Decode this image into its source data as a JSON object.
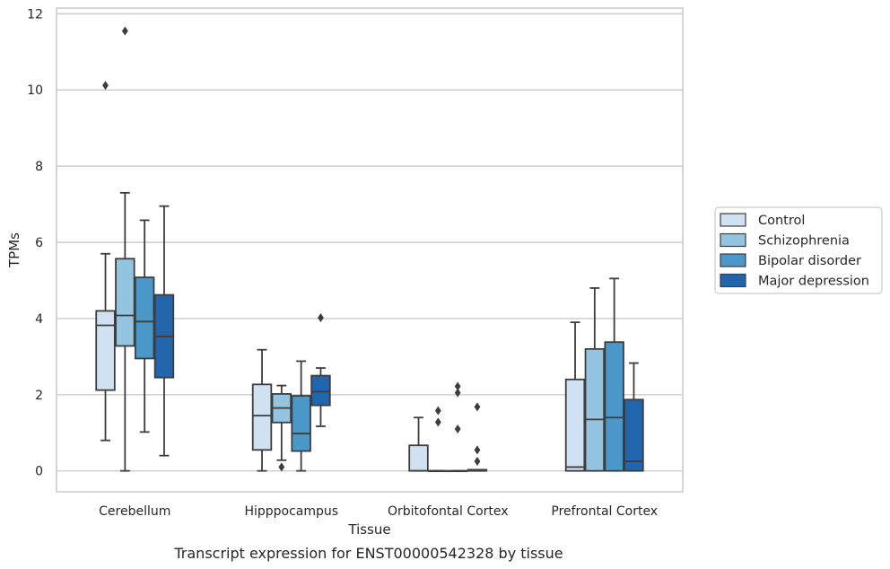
{
  "chart_data": {
    "type": "box",
    "caption": "Transcript expression for ENST00000542328 by tissue",
    "xlabel": "Tissue",
    "ylabel": "TPMs",
    "ylim": [
      -0.55,
      12.15
    ],
    "yticks": [
      0,
      2,
      4,
      6,
      8,
      10,
      12
    ],
    "categories": [
      "Cerebellum",
      "Hipppocampus",
      "Orbitofontal Cortex",
      "Prefrontal Cortex"
    ],
    "grid": true,
    "legend_position": "right",
    "series": [
      {
        "name": "Control",
        "color": "#d0e1f2",
        "boxes": [
          {
            "whislo": 0.8,
            "q1": 2.12,
            "med": 3.82,
            "q3": 4.2,
            "whishi": 5.7,
            "fliers": [
              10.12
            ]
          },
          {
            "whislo": 0.0,
            "q1": 0.55,
            "med": 1.45,
            "q3": 2.27,
            "whishi": 3.18,
            "fliers": []
          },
          {
            "whislo": 0.0,
            "q1": 0.0,
            "med": 0.0,
            "q3": 0.67,
            "whishi": 1.4,
            "fliers": []
          },
          {
            "whislo": 0.0,
            "q1": 0.0,
            "med": 0.1,
            "q3": 2.4,
            "whishi": 3.9,
            "fliers": []
          }
        ]
      },
      {
        "name": "Schizophrenia",
        "color": "#94c4df",
        "boxes": [
          {
            "whislo": 0.0,
            "q1": 3.28,
            "med": 4.08,
            "q3": 5.57,
            "whishi": 7.3,
            "fliers": [
              11.55
            ]
          },
          {
            "whislo": 0.28,
            "q1": 1.27,
            "med": 1.65,
            "q3": 2.02,
            "whishi": 2.24,
            "fliers": [
              0.1
            ]
          },
          {
            "whislo": 0.0,
            "q1": 0.0,
            "med": 0.0,
            "q3": 0.0,
            "whishi": 0.0,
            "fliers": [
              1.28,
              1.58
            ]
          },
          {
            "whislo": 0.0,
            "q1": 0.0,
            "med": 1.35,
            "q3": 3.2,
            "whishi": 4.8,
            "fliers": []
          }
        ]
      },
      {
        "name": "Bipolar disorder",
        "color": "#4a98c9",
        "boxes": [
          {
            "whislo": 1.02,
            "q1": 2.95,
            "med": 3.92,
            "q3": 5.08,
            "whishi": 6.58,
            "fliers": []
          },
          {
            "whislo": 0.0,
            "q1": 0.52,
            "med": 0.98,
            "q3": 1.97,
            "whishi": 2.88,
            "fliers": []
          },
          {
            "whislo": 0.0,
            "q1": 0.0,
            "med": 0.0,
            "q3": 0.0,
            "whishi": 0.0,
            "fliers": [
              1.1,
              2.05,
              2.22
            ]
          },
          {
            "whislo": 0.0,
            "q1": 0.0,
            "med": 1.4,
            "q3": 3.38,
            "whishi": 5.05,
            "fliers": []
          }
        ]
      },
      {
        "name": "Major depression",
        "color": "#2166ac",
        "boxes": [
          {
            "whislo": 0.4,
            "q1": 2.45,
            "med": 3.53,
            "q3": 4.62,
            "whishi": 6.95,
            "fliers": []
          },
          {
            "whislo": 1.17,
            "q1": 1.72,
            "med": 2.08,
            "q3": 2.5,
            "whishi": 2.7,
            "fliers": [
              4.02
            ]
          },
          {
            "whislo": 0.0,
            "q1": 0.0,
            "med": 0.0,
            "q3": 0.03,
            "whishi": 0.03,
            "fliers": [
              0.25,
              0.55,
              1.68
            ]
          },
          {
            "whislo": 0.0,
            "q1": 0.0,
            "med": 0.25,
            "q3": 1.87,
            "whishi": 2.83,
            "fliers": []
          }
        ]
      }
    ]
  }
}
